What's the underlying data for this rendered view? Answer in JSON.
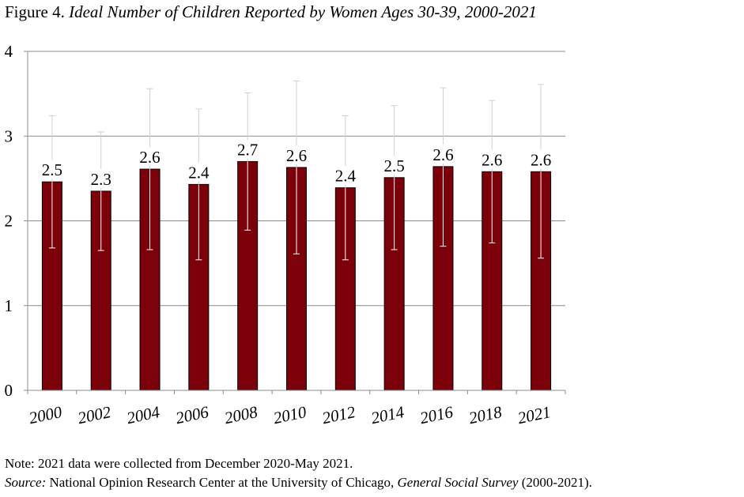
{
  "title": {
    "label": "Figure 4.",
    "text": "Ideal Number of Children Reported by Women Ages 30-39, 2000-2021"
  },
  "chart_data": {
    "type": "bar",
    "title": "Ideal Number of Children Reported by Women Ages 30-39, 2000-2021",
    "xlabel": "",
    "ylabel": "",
    "categories": [
      "2000",
      "2002",
      "2004",
      "2006",
      "2008",
      "2010",
      "2012",
      "2014",
      "2016",
      "2018",
      "2021"
    ],
    "values": [
      2.46,
      2.35,
      2.61,
      2.43,
      2.7,
      2.63,
      2.39,
      2.51,
      2.64,
      2.58,
      2.58
    ],
    "data_labels": [
      "2.5",
      "2.3",
      "2.6",
      "2.4",
      "2.7",
      "2.6",
      "2.4",
      "2.5",
      "2.6",
      "2.6",
      "2.6"
    ],
    "error_low": [
      1.68,
      1.65,
      1.66,
      1.54,
      1.89,
      1.61,
      1.54,
      1.66,
      1.7,
      1.74,
      1.56
    ],
    "error_high": [
      3.24,
      3.05,
      3.56,
      3.32,
      3.51,
      3.65,
      3.24,
      3.36,
      3.57,
      3.42,
      3.61
    ],
    "ylim": [
      0,
      4
    ],
    "yticks": [
      "0",
      "1",
      "2",
      "3",
      "4"
    ],
    "grid": true,
    "bar_color": "#7b0009",
    "error_bar_color": "#ffffff"
  },
  "notes": {
    "note": "Note: 2021 data were collected from December 2020-May 2021.",
    "source_label": "Source:",
    "source_text_1": " National Opinion Research Center at the University of Chicago, ",
    "source_title": "General Social Survey",
    "source_text_2": " (2000-2021)."
  }
}
